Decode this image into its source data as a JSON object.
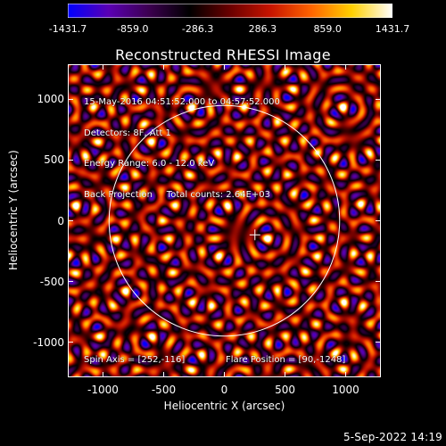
{
  "colorbar": {
    "ticks": [
      "-1431.7",
      "-859.0",
      "-286.3",
      "286.3",
      "859.0",
      "1431.7"
    ],
    "min": -1431.7,
    "max": 1431.7,
    "colors": [
      "#0000ff",
      "#5a00b4",
      "#3c0050",
      "#000000",
      "#6a0000",
      "#c81400",
      "#ff6400",
      "#ffd000",
      "#ffffff"
    ]
  },
  "plot": {
    "title": "Reconstructed RHESSI Image",
    "xlabel": "Heliocentric X (arcsec)",
    "ylabel": "Heliocentric Y (arcsec)",
    "xticks": [
      "-1000",
      "-500",
      "0",
      "500",
      "1000"
    ],
    "yticks": [
      "1000",
      "500",
      "0",
      "-500",
      "-1000"
    ],
    "xlim": [
      -1290,
      1290
    ],
    "ylim": [
      -1290,
      1290
    ],
    "solar_disk_radius": 950,
    "center_marker": [
      252,
      -116
    ],
    "annotation_lines": [
      "15-May-2016 04:51:52.000 to 04:57:52.000",
      "Detectors: 8F, Att 1",
      "Energy Range: 6.0 - 12.0 keV",
      "Back Projection     Total counts: 2.64E+03"
    ],
    "spin_axis": "Spin Axis = [252,-116]",
    "flare_position": "Flare Position = [90,-1248]"
  },
  "footer": {
    "date": "5-Sep-2022 14:19"
  }
}
